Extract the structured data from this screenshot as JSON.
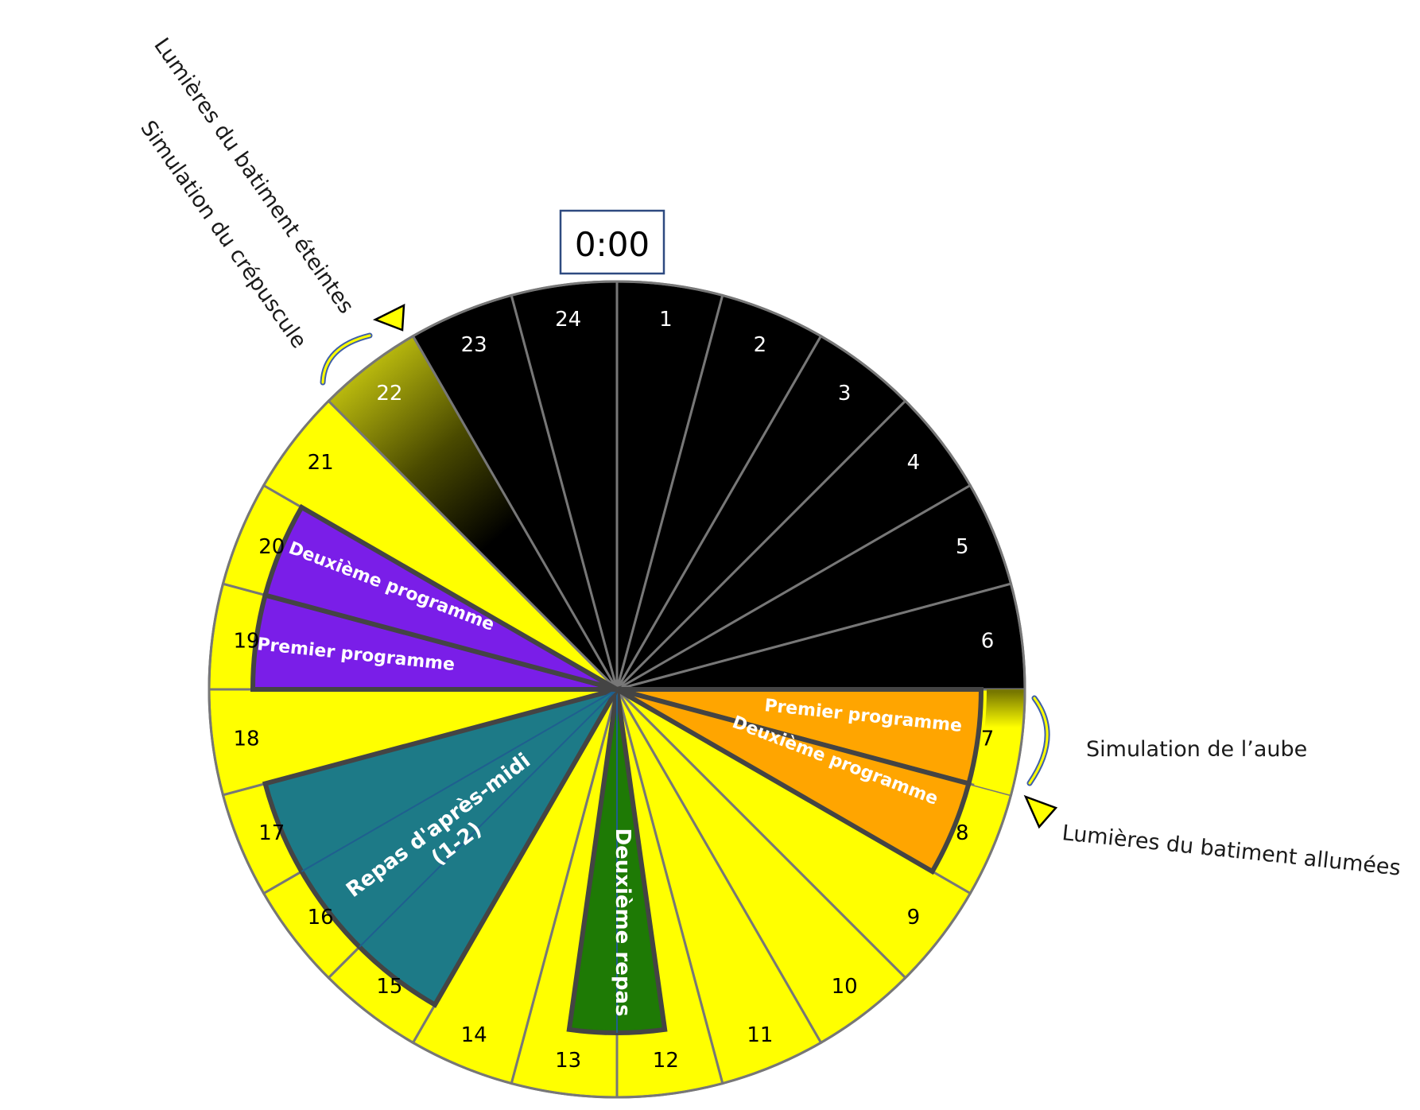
{
  "diagram": {
    "midnight_label": "0:00",
    "hours": [
      "1",
      "2",
      "3",
      "4",
      "5",
      "6",
      "7",
      "8",
      "9",
      "10",
      "11",
      "12",
      "13",
      "14",
      "15",
      "16",
      "17",
      "18",
      "19",
      "20",
      "21",
      "22",
      "23",
      "24"
    ],
    "dark_hours": [
      "23",
      "24",
      "1",
      "2",
      "3",
      "4",
      "5",
      "6"
    ],
    "light_hours": [
      "7",
      "8",
      "9",
      "10",
      "11",
      "12",
      "13",
      "14",
      "15",
      "16",
      "17",
      "18",
      "19",
      "20",
      "21",
      "22"
    ],
    "colors": {
      "light": "#ffff00",
      "dark": "#000000",
      "morning_programs": "#ffa500",
      "evening_programs": "#7a1ee8",
      "afternoon_meal": "#1d7a87",
      "second_meal": "#1e7a05",
      "border": "#777777",
      "outline": "#444444",
      "arrow_fill": "#ffff00",
      "curve": "#3f5fa8"
    },
    "programs": {
      "morning_first": "Premier programme",
      "morning_second": "Deuxième programme",
      "evening_first": "Premier programme",
      "evening_second": "Deuxième programme",
      "afternoon_meal_line1": "Repas d'après-midi",
      "afternoon_meal_line2": "(1-2)",
      "second_meal": "Deuxième repas"
    },
    "annotations": {
      "dawn": "Simulation de l’aube",
      "lights_on": "Lumières du batiment allumées",
      "dusk": "Simulation du crépuscule",
      "lights_off": "Lumières du batiment éteintes"
    }
  }
}
